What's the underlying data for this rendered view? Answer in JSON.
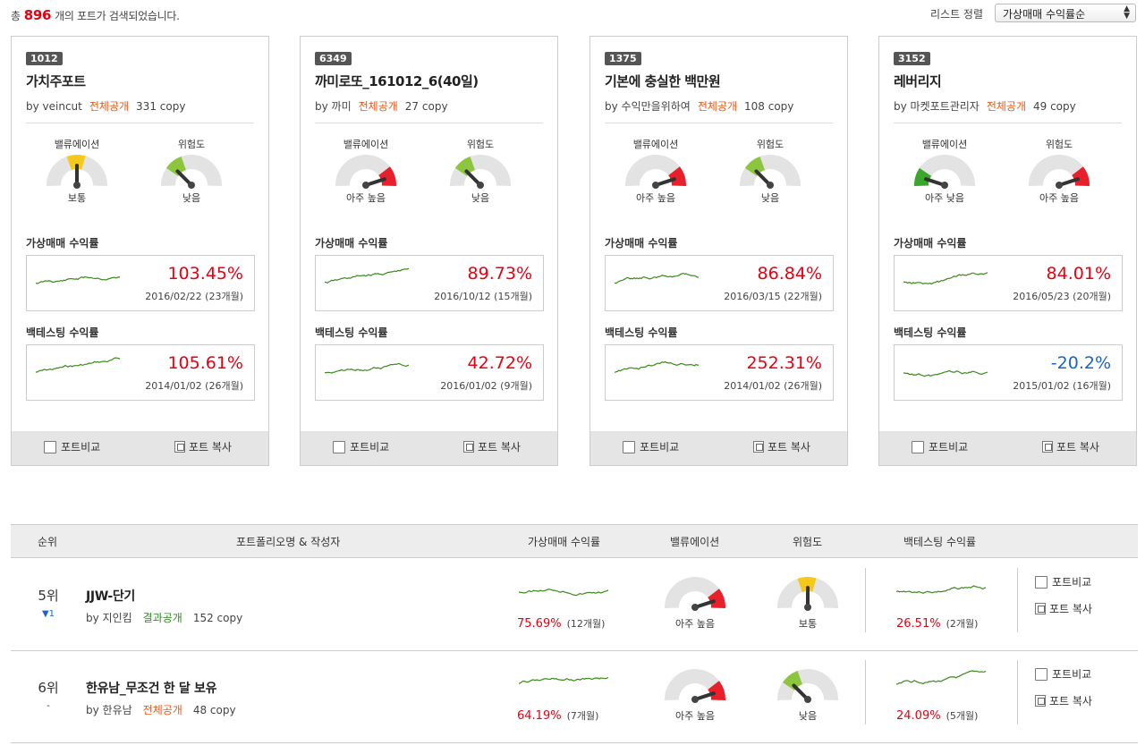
{
  "summary": {
    "prefix": "총",
    "count": "896",
    "suffix": "개의 포트가 검색되었습니다."
  },
  "sort": {
    "label": "리스트 정렬",
    "selected": "가상매매 수익률순"
  },
  "labels": {
    "valuation": "밸류에이션",
    "risk": "위험도",
    "virtual_return": "가상매매 수익률",
    "backtest_return": "백테스팅 수익률",
    "compare": "포트비교",
    "copy": "포트 복사"
  },
  "cards": [
    {
      "id": "1012",
      "title": "가치주포트",
      "author": "by veincut",
      "visibility": "전체공개",
      "copies": "331 copy",
      "valuation": {
        "text": "보통",
        "level": 0.5,
        "color": "#f5c81a"
      },
      "risk": {
        "text": "낮음",
        "level": 0.25,
        "color": "#8cc63f"
      },
      "virtual": {
        "pct": "103.45%",
        "date": "2016/02/22 (23개월)",
        "negative": false
      },
      "backtest": {
        "pct": "105.61%",
        "date": "2014/01/02 (26개월)",
        "negative": false
      }
    },
    {
      "id": "6349",
      "title": "까미로또_161012_6(40일)",
      "author": "by 까미",
      "visibility": "전체공개",
      "copies": "27 copy",
      "valuation": {
        "text": "아주 높음",
        "level": 0.9,
        "color": "#e8202b"
      },
      "risk": {
        "text": "낮음",
        "level": 0.25,
        "color": "#8cc63f"
      },
      "virtual": {
        "pct": "89.73%",
        "date": "2016/10/12 (15개월)",
        "negative": false
      },
      "backtest": {
        "pct": "42.72%",
        "date": "2016/01/02 (9개월)",
        "negative": false
      }
    },
    {
      "id": "1375",
      "title": "기본에 충실한 백만원",
      "author": "by 수익만을위하여",
      "visibility": "전체공개",
      "copies": "108 copy",
      "valuation": {
        "text": "아주 높음",
        "level": 0.9,
        "color": "#e8202b"
      },
      "risk": {
        "text": "낮음",
        "level": 0.25,
        "color": "#8cc63f"
      },
      "virtual": {
        "pct": "86.84%",
        "date": "2016/03/15 (22개월)",
        "negative": false
      },
      "backtest": {
        "pct": "252.31%",
        "date": "2014/01/02 (26개월)",
        "negative": false
      }
    },
    {
      "id": "3152",
      "title": "레버리지",
      "author": "by 마켓포트관리자",
      "visibility": "전체공개",
      "copies": "49 copy",
      "valuation": {
        "text": "아주 낮음",
        "level": 0.1,
        "color": "#3aa62c"
      },
      "risk": {
        "text": "아주 높음",
        "level": 0.9,
        "color": "#e8202b"
      },
      "virtual": {
        "pct": "84.01%",
        "date": "2016/05/23 (20개월)",
        "negative": false
      },
      "backtest": {
        "pct": "-20.2%",
        "date": "2015/01/02 (16개월)",
        "negative": true
      }
    }
  ],
  "table": {
    "headers": {
      "rank": "순위",
      "name": "포트폴리오명 & 작성자",
      "virtual": "가상매매 수익률",
      "valuation": "밸류에이션",
      "risk": "위험도",
      "backtest": "백테스팅 수익률"
    },
    "rows": [
      {
        "rank": "5위",
        "move": "▼1",
        "name": "JJW-단기",
        "author": "by 지인킴",
        "visibility": "결과공개",
        "copies": "152 copy",
        "virtual": {
          "pct": "75.69%",
          "period": "(12개월)"
        },
        "valuation": {
          "text": "아주 높음",
          "level": 0.9,
          "color": "#e8202b"
        },
        "risk": {
          "text": "보통",
          "level": 0.5,
          "color": "#f5c81a"
        },
        "backtest": {
          "pct": "26.51%",
          "period": "(2개월)"
        }
      },
      {
        "rank": "6위",
        "move": "-",
        "name": "한유남_무조건 한 달 보유",
        "author": "by 한유남",
        "visibility": "전체공개",
        "copies": "48 copy",
        "virtual": {
          "pct": "64.19%",
          "period": "(7개월)"
        },
        "valuation": {
          "text": "아주 높음",
          "level": 0.9,
          "color": "#e8202b"
        },
        "risk": {
          "text": "낮음",
          "level": 0.25,
          "color": "#8cc63f"
        },
        "backtest": {
          "pct": "24.09%",
          "period": "(5개월)"
        }
      }
    ]
  }
}
